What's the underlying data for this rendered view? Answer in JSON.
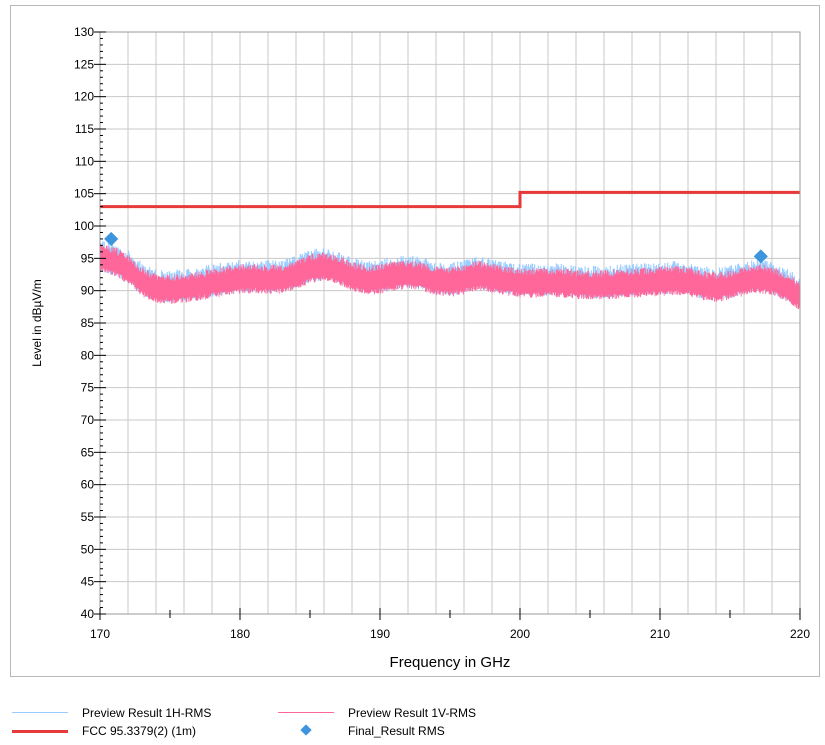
{
  "chart_data": {
    "type": "line",
    "xlabel": "Frequency in GHz",
    "ylabel": "Level in dBµV/m",
    "xlim": [
      170,
      220
    ],
    "ylim": [
      40,
      130
    ],
    "x_ticks": [
      170,
      180,
      190,
      200,
      210,
      220
    ],
    "y_ticks": [
      40,
      45,
      50,
      55,
      60,
      65,
      70,
      75,
      80,
      85,
      90,
      95,
      100,
      105,
      110,
      115,
      120,
      125,
      130
    ],
    "grid": true,
    "legend_position": "bottom",
    "series": [
      {
        "name": "Preview Result 1H-RMS",
        "style": "noisy-line",
        "color": "#99ccff",
        "points": [
          [
            170,
            95.2
          ],
          [
            171,
            94.6
          ],
          [
            172,
            93.4
          ],
          [
            173,
            91.5
          ],
          [
            174,
            90.4
          ],
          [
            175,
            90.3
          ],
          [
            176,
            90.5
          ],
          [
            177,
            90.8
          ],
          [
            178,
            91.2
          ],
          [
            179,
            91.6
          ],
          [
            180,
            91.9
          ],
          [
            181,
            92.0
          ],
          [
            182,
            91.8
          ],
          [
            183,
            91.9
          ],
          [
            184,
            92.6
          ],
          [
            185,
            93.5
          ],
          [
            186,
            93.8
          ],
          [
            187,
            93.3
          ],
          [
            188,
            92.4
          ],
          [
            189,
            91.7
          ],
          [
            190,
            91.9
          ],
          [
            191,
            92.4
          ],
          [
            192,
            92.6
          ],
          [
            193,
            92.3
          ],
          [
            194,
            91.7
          ],
          [
            195,
            91.4
          ],
          [
            196,
            91.8
          ],
          [
            197,
            92.5
          ],
          [
            198,
            92.0
          ],
          [
            199,
            91.6
          ],
          [
            200,
            91.3
          ],
          [
            201,
            91.3
          ],
          [
            202,
            91.4
          ],
          [
            203,
            91.3
          ],
          [
            204,
            91.1
          ],
          [
            205,
            91.0
          ],
          [
            206,
            91.0
          ],
          [
            207,
            91.1
          ],
          [
            208,
            91.3
          ],
          [
            209,
            91.4
          ],
          [
            210,
            91.6
          ],
          [
            211,
            91.7
          ],
          [
            212,
            91.6
          ],
          [
            213,
            90.9
          ],
          [
            214,
            90.6
          ],
          [
            215,
            91.0
          ],
          [
            216,
            91.6
          ],
          [
            217,
            92.0
          ],
          [
            218,
            91.6
          ],
          [
            219,
            90.6
          ],
          [
            220,
            89.3
          ]
        ]
      },
      {
        "name": "Preview Result 1V-RMS",
        "style": "noisy-line",
        "color": "#ff6699",
        "points": [
          [
            170,
            95.0
          ],
          [
            171,
            94.4
          ],
          [
            172,
            93.2
          ],
          [
            173,
            91.3
          ],
          [
            174,
            90.2
          ],
          [
            175,
            90.1
          ],
          [
            176,
            90.3
          ],
          [
            177,
            90.6
          ],
          [
            178,
            91.0
          ],
          [
            179,
            91.4
          ],
          [
            180,
            91.7
          ],
          [
            181,
            91.8
          ],
          [
            182,
            91.6
          ],
          [
            183,
            91.7
          ],
          [
            184,
            92.4
          ],
          [
            185,
            93.3
          ],
          [
            186,
            93.6
          ],
          [
            187,
            93.1
          ],
          [
            188,
            92.2
          ],
          [
            189,
            91.5
          ],
          [
            190,
            91.7
          ],
          [
            191,
            92.2
          ],
          [
            192,
            92.4
          ],
          [
            193,
            92.1
          ],
          [
            194,
            91.5
          ],
          [
            195,
            91.2
          ],
          [
            196,
            91.6
          ],
          [
            197,
            92.3
          ],
          [
            198,
            91.8
          ],
          [
            199,
            91.4
          ],
          [
            200,
            91.1
          ],
          [
            201,
            91.1
          ],
          [
            202,
            91.2
          ],
          [
            203,
            91.1
          ],
          [
            204,
            90.9
          ],
          [
            205,
            90.8
          ],
          [
            206,
            90.8
          ],
          [
            207,
            90.9
          ],
          [
            208,
            91.1
          ],
          [
            209,
            91.2
          ],
          [
            210,
            91.4
          ],
          [
            211,
            91.5
          ],
          [
            212,
            91.4
          ],
          [
            213,
            90.7
          ],
          [
            214,
            90.4
          ],
          [
            215,
            90.8
          ],
          [
            216,
            91.4
          ],
          [
            217,
            91.8
          ],
          [
            218,
            91.4
          ],
          [
            219,
            90.4
          ],
          [
            220,
            89.1
          ]
        ]
      },
      {
        "name": "FCC 95.3379(2) (1m)",
        "style": "step-line",
        "color": "#e8393a",
        "points": [
          [
            170,
            103
          ],
          [
            200,
            103
          ],
          [
            200,
            105.2
          ],
          [
            220,
            105.2
          ]
        ]
      },
      {
        "name": "Final_Result RMS",
        "style": "markers",
        "color": "#3d95de",
        "points": [
          [
            170.8,
            98.0
          ],
          [
            217.2,
            95.3
          ]
        ]
      }
    ]
  }
}
